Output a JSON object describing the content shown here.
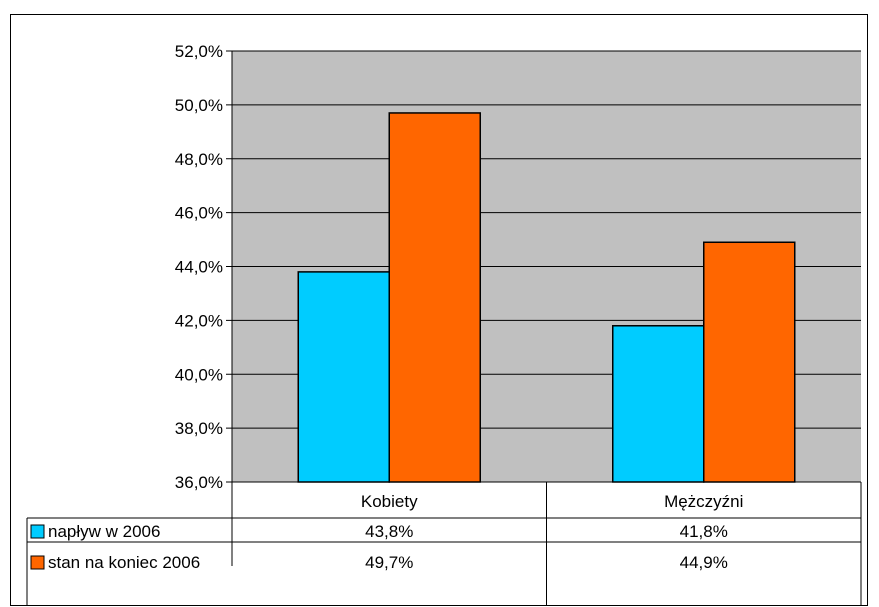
{
  "chart_data": {
    "type": "bar",
    "categories": [
      "Kobiety",
      "Mężczyźni"
    ],
    "series": [
      {
        "name": "napływ w 2006",
        "values": [
          43.8,
          41.8
        ],
        "labels": [
          "43,8%",
          "41,8%"
        ],
        "color": "#00ccff"
      },
      {
        "name": "stan na koniec 2006",
        "values": [
          49.7,
          44.9
        ],
        "labels": [
          "49,7%",
          "44,9%"
        ],
        "color": "#ff6600"
      }
    ],
    "ylim": [
      36,
      52
    ],
    "yticks": [
      36,
      38,
      40,
      42,
      44,
      46,
      48,
      50,
      52
    ],
    "ytick_labels": [
      "36,0%",
      "38,0%",
      "40,0%",
      "42,0%",
      "44,0%",
      "46,0%",
      "48,0%",
      "50,0%",
      "52,0%"
    ],
    "plot_background": "#c0c0c0",
    "grid": true,
    "legend": "data-table",
    "title": "",
    "xlabel": "",
    "ylabel": ""
  }
}
